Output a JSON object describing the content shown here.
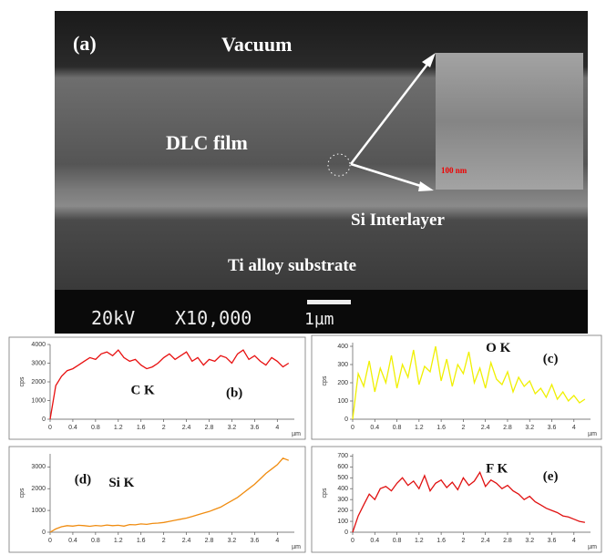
{
  "sem_image": {
    "panel_label": "(a)",
    "vacuum": "Vacuum",
    "film": "DLC film",
    "interlayer": "Si Interlayer",
    "substrate": "Ti alloy substrate",
    "voltage": "20kV",
    "magnification": "X10,000",
    "scale_bar": "1µm",
    "inset_scale": "100 nm"
  },
  "chart_data": [
    {
      "type": "line",
      "panel_label": "(b)",
      "element_label": "C K",
      "y_label": "cps",
      "x_label": "µm",
      "color": "#e81010",
      "x": [
        0,
        0.1,
        0.2,
        0.3,
        0.4,
        0.5,
        0.6,
        0.7,
        0.8,
        0.9,
        1,
        1.1,
        1.2,
        1.3,
        1.4,
        1.5,
        1.6,
        1.7,
        1.8,
        1.9,
        2,
        2.1,
        2.2,
        2.3,
        2.4,
        2.5,
        2.6,
        2.7,
        2.8,
        2.9,
        3,
        3.1,
        3.2,
        3.3,
        3.4,
        3.5,
        3.6,
        3.7,
        3.8,
        3.9,
        4,
        4.1,
        4.2
      ],
      "values": [
        0,
        1800,
        2300,
        2600,
        2700,
        2900,
        3100,
        3300,
        3200,
        3500,
        3600,
        3400,
        3700,
        3300,
        3100,
        3200,
        2900,
        2700,
        2800,
        3000,
        3300,
        3500,
        3200,
        3400,
        3600,
        3100,
        3300,
        2900,
        3200,
        3100,
        3400,
        3300,
        3000,
        3500,
        3700,
        3200,
        3400,
        3100,
        2900,
        3300,
        3100,
        2800,
        3000
      ],
      "xlim": [
        0,
        4.3
      ],
      "xticks": [
        0,
        0.4,
        0.8,
        1.2,
        1.6,
        2,
        2.4,
        2.8,
        3.2,
        3.6,
        4
      ],
      "ylim": [
        0,
        4000
      ],
      "yticks": [
        0,
        1000,
        2000,
        3000,
        4000
      ]
    },
    {
      "type": "line",
      "panel_label": "(c)",
      "element_label": "O K",
      "y_label": "cps",
      "x_label": "µm",
      "color": "#f0f000",
      "x": [
        0,
        0.1,
        0.2,
        0.3,
        0.4,
        0.5,
        0.6,
        0.7,
        0.8,
        0.9,
        1,
        1.1,
        1.2,
        1.3,
        1.4,
        1.5,
        1.6,
        1.7,
        1.8,
        1.9,
        2,
        2.1,
        2.2,
        2.3,
        2.4,
        2.5,
        2.6,
        2.7,
        2.8,
        2.9,
        3,
        3.1,
        3.2,
        3.3,
        3.4,
        3.5,
        3.6,
        3.7,
        3.8,
        3.9,
        4,
        4.1,
        4.2
      ],
      "values": [
        0,
        250,
        180,
        320,
        150,
        280,
        200,
        350,
        170,
        300,
        230,
        380,
        190,
        290,
        260,
        400,
        210,
        330,
        180,
        300,
        250,
        370,
        200,
        280,
        170,
        310,
        220,
        190,
        260,
        150,
        230,
        180,
        210,
        140,
        170,
        120,
        190,
        110,
        150,
        100,
        130,
        90,
        110
      ],
      "xlim": [
        0,
        4.3
      ],
      "xticks": [
        0,
        0.4,
        0.8,
        1.2,
        1.6,
        2,
        2.4,
        2.8,
        3.2,
        3.6,
        4
      ],
      "ylim": [
        0,
        420
      ],
      "yticks": [
        0,
        100,
        200,
        300,
        400
      ]
    },
    {
      "type": "line",
      "panel_label": "(d)",
      "element_label": "Si K",
      "y_label": "cps",
      "x_label": "µm",
      "color": "#f08c10",
      "x": [
        0,
        0.1,
        0.2,
        0.3,
        0.4,
        0.5,
        0.6,
        0.7,
        0.8,
        0.9,
        1,
        1.1,
        1.2,
        1.3,
        1.4,
        1.5,
        1.6,
        1.7,
        1.8,
        1.9,
        2,
        2.1,
        2.2,
        2.3,
        2.4,
        2.5,
        2.6,
        2.7,
        2.8,
        2.9,
        3,
        3.1,
        3.2,
        3.3,
        3.4,
        3.5,
        3.6,
        3.7,
        3.8,
        3.9,
        4,
        4.1,
        4.2
      ],
      "values": [
        0,
        150,
        250,
        300,
        280,
        320,
        300,
        270,
        310,
        290,
        330,
        300,
        320,
        280,
        350,
        340,
        380,
        360,
        400,
        420,
        450,
        500,
        550,
        600,
        650,
        720,
        800,
        880,
        950,
        1050,
        1150,
        1300,
        1450,
        1600,
        1800,
        2000,
        2200,
        2450,
        2700,
        2900,
        3100,
        3400,
        3300
      ],
      "xlim": [
        0,
        4.3
      ],
      "xticks": [
        0,
        0.4,
        0.8,
        1.2,
        1.6,
        2,
        2.4,
        2.8,
        3.2,
        3.6,
        4
      ],
      "ylim": [
        0,
        3600
      ],
      "yticks": [
        0,
        1000,
        2000,
        3000
      ]
    },
    {
      "type": "line",
      "panel_label": "(e)",
      "element_label": "F K",
      "y_label": "cps",
      "x_label": "µm",
      "color": "#e01010",
      "x": [
        0,
        0.1,
        0.2,
        0.3,
        0.4,
        0.5,
        0.6,
        0.7,
        0.8,
        0.9,
        1,
        1.1,
        1.2,
        1.3,
        1.4,
        1.5,
        1.6,
        1.7,
        1.8,
        1.9,
        2,
        2.1,
        2.2,
        2.3,
        2.4,
        2.5,
        2.6,
        2.7,
        2.8,
        2.9,
        3,
        3.1,
        3.2,
        3.3,
        3.4,
        3.5,
        3.6,
        3.7,
        3.8,
        3.9,
        4,
        4.1,
        4.2
      ],
      "values": [
        0,
        150,
        250,
        350,
        300,
        400,
        420,
        380,
        450,
        500,
        430,
        470,
        400,
        520,
        380,
        450,
        480,
        410,
        460,
        390,
        500,
        430,
        470,
        550,
        420,
        480,
        450,
        400,
        430,
        380,
        350,
        300,
        330,
        280,
        250,
        220,
        200,
        180,
        150,
        140,
        120,
        100,
        90
      ],
      "xlim": [
        0,
        4.3
      ],
      "xticks": [
        0,
        0.4,
        0.8,
        1.2,
        1.6,
        2,
        2.4,
        2.8,
        3.2,
        3.6,
        4
      ],
      "ylim": [
        0,
        720
      ],
      "yticks": [
        0,
        100,
        200,
        300,
        400,
        500,
        600,
        700
      ]
    }
  ]
}
